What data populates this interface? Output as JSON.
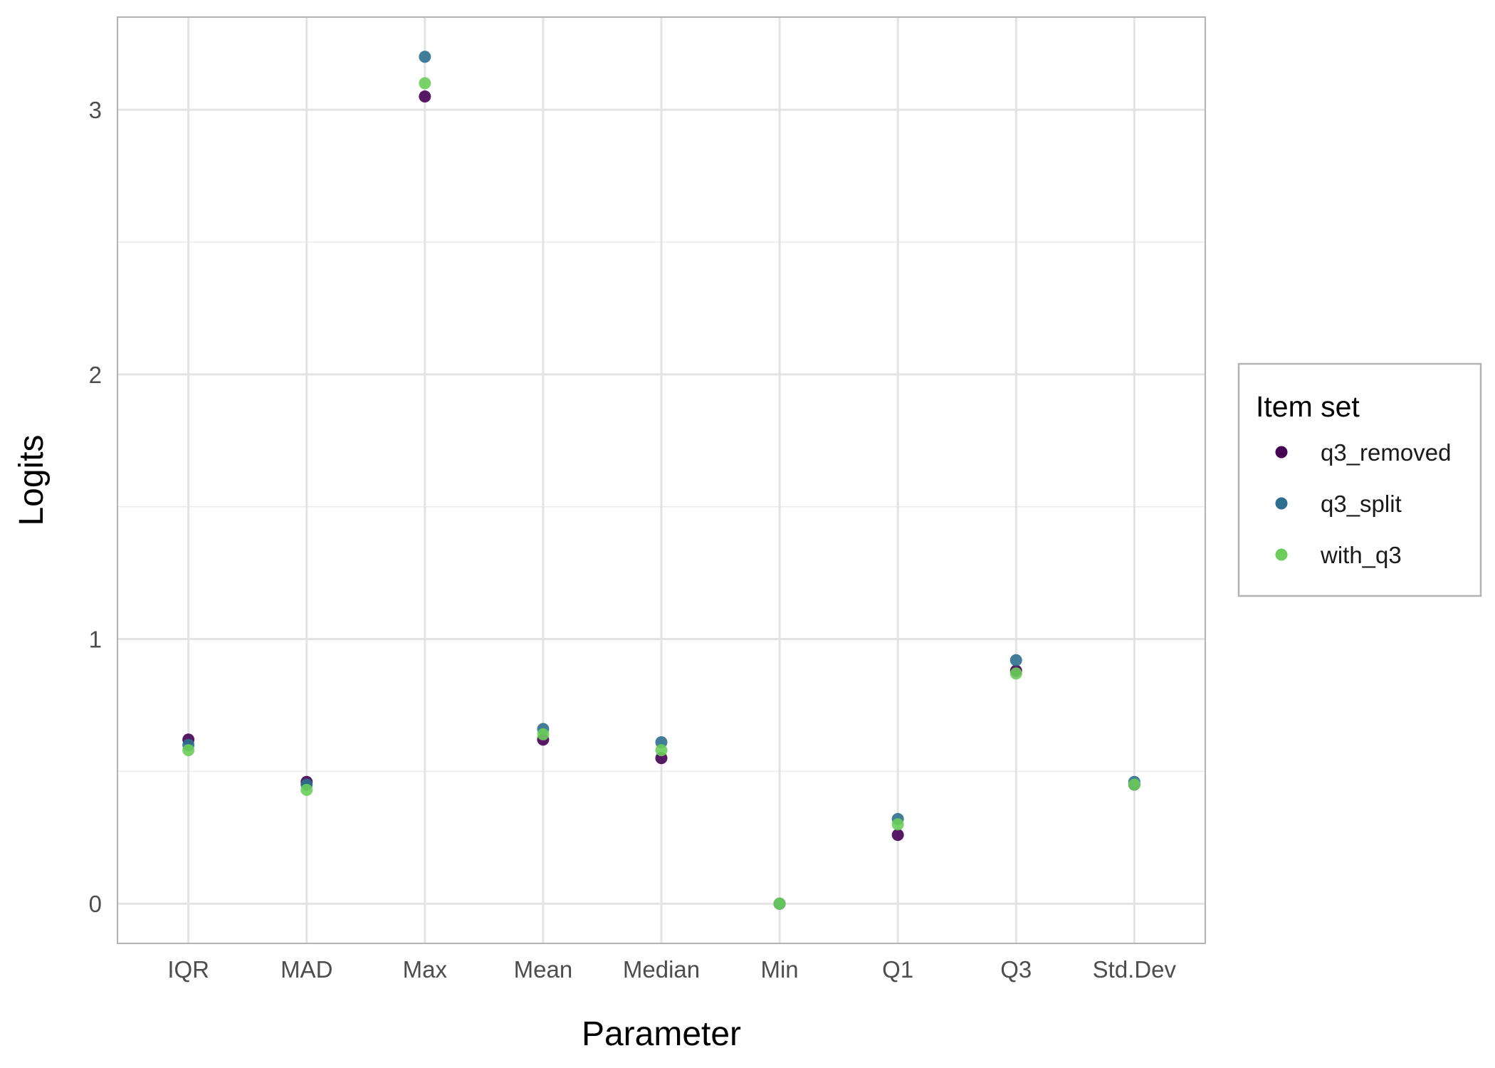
{
  "chart_data": {
    "type": "scatter",
    "xlabel": "Parameter",
    "ylabel": "Logits",
    "categories": [
      "IQR",
      "MAD",
      "Max",
      "Mean",
      "Median",
      "Min",
      "Q1",
      "Q3",
      "Std.Dev"
    ],
    "yticks": [
      0,
      1,
      2,
      3
    ],
    "ylim": [
      -0.15,
      3.35
    ],
    "grid": true,
    "legend": {
      "title": "Item set",
      "placement": "right"
    },
    "series": [
      {
        "name": "q3_removed",
        "color": "#440154",
        "values": [
          0.62,
          0.46,
          3.05,
          0.62,
          0.55,
          0.0,
          0.26,
          0.88,
          0.45
        ]
      },
      {
        "name": "q3_split",
        "color": "#2e6f8e",
        "values": [
          0.6,
          0.45,
          3.2,
          0.66,
          0.61,
          0.0,
          0.32,
          0.92,
          0.46
        ]
      },
      {
        "name": "with_q3",
        "color": "#6ccd5a",
        "values": [
          0.58,
          0.43,
          3.1,
          0.64,
          0.58,
          0.0,
          0.3,
          0.87,
          0.45
        ]
      }
    ]
  }
}
